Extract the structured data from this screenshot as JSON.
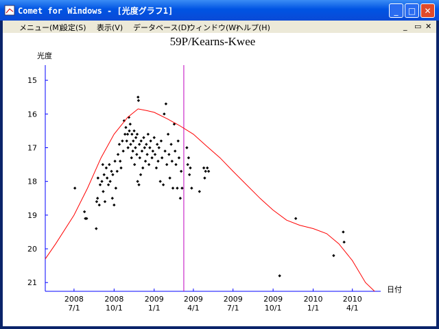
{
  "window": {
    "title": "Comet for Windows - [光度グラフ1]"
  },
  "menu": [
    "メニュー(M)",
    "設定(S)",
    "表示(V)",
    "データベース(D)",
    "ウィンドウ(W)",
    "ヘルプ(H)"
  ],
  "chart_data": {
    "type": "scatter",
    "title": "59P/Kearns-Kwee",
    "y_label": "光度",
    "x_label": "日付",
    "xlim": [
      "2008-04-26",
      "2010-06-05"
    ],
    "xticks": [
      {
        "value": "2008-07-01",
        "label": [
          "2008",
          "7/1"
        ]
      },
      {
        "value": "2008-10-01",
        "label": [
          "2008",
          "10/1"
        ]
      },
      {
        "value": "2009-01-01",
        "label": [
          "2009",
          "1/1"
        ]
      },
      {
        "value": "2009-04-01",
        "label": [
          "2009",
          "4/1"
        ]
      },
      {
        "value": "2009-07-01",
        "label": [
          "2009",
          "7/1"
        ]
      },
      {
        "value": "2009-10-01",
        "label": [
          "2009",
          "10/1"
        ]
      },
      {
        "value": "2010-01-01",
        "label": [
          "2010",
          "1/1"
        ]
      },
      {
        "value": "2010-04-01",
        "label": [
          "2010",
          "4/1"
        ]
      }
    ],
    "ylim": [
      14.55,
      21.26
    ],
    "y_inverted": true,
    "yticks": [
      15,
      16,
      17,
      18,
      19,
      20,
      21
    ],
    "axis_color": "#0000ff",
    "marker_date": "2009-03-10",
    "marker_color": "#c000c0",
    "series": [
      {
        "type": "scatter",
        "color": "#000000",
        "x": [
          "2008-07-03",
          "2008-07-25",
          "2008-07-27",
          "2008-07-30",
          "2008-08-21",
          "2008-08-22",
          "2008-08-24",
          "2008-08-25",
          "2008-08-28",
          "2008-08-30",
          "2008-09-03",
          "2008-09-05",
          "2008-09-06",
          "2008-09-08",
          "2008-09-10",
          "2008-09-13",
          "2008-09-15",
          "2008-09-18",
          "2008-09-20",
          "2008-09-22",
          "2008-09-25",
          "2008-09-27",
          "2008-09-28",
          "2008-10-01",
          "2008-10-03",
          "2008-10-05",
          "2008-10-08",
          "2008-10-10",
          "2008-10-13",
          "2008-10-15",
          "2008-10-17",
          "2008-10-20",
          "2008-10-22",
          "2008-10-24",
          "2008-10-26",
          "2008-10-28",
          "2008-10-30",
          "2008-11-01",
          "2008-11-02",
          "2008-11-04",
          "2008-11-05",
          "2008-11-07",
          "2008-11-08",
          "2008-11-10",
          "2008-11-11",
          "2008-11-13",
          "2008-11-14",
          "2008-11-16",
          "2008-11-17",
          "2008-11-19",
          "2008-11-20",
          "2008-11-22",
          "2008-11-23",
          "2008-11-24",
          "2008-11-25",
          "2008-11-26",
          "2008-11-27",
          "2008-11-28",
          "2008-11-29",
          "2008-12-01",
          "2008-12-02",
          "2008-12-04",
          "2008-12-06",
          "2008-12-08",
          "2008-12-10",
          "2008-12-12",
          "2008-12-14",
          "2008-12-16",
          "2008-12-18",
          "2008-12-20",
          "2008-12-22",
          "2008-12-24",
          "2008-12-27",
          "2008-12-29",
          "2009-01-01",
          "2009-01-03",
          "2009-01-06",
          "2009-01-08",
          "2009-01-10",
          "2009-01-12",
          "2009-01-15",
          "2009-01-17",
          "2009-01-19",
          "2009-01-22",
          "2009-01-24",
          "2009-01-26",
          "2009-01-28",
          "2009-01-30",
          "2009-02-02",
          "2009-02-04",
          "2009-02-06",
          "2009-02-09",
          "2009-02-11",
          "2009-02-13",
          "2009-02-16",
          "2009-02-18",
          "2009-02-20",
          "2009-02-23",
          "2009-02-25",
          "2009-02-27",
          "2009-03-02",
          "2009-03-04",
          "2009-03-06",
          "2009-03-17",
          "2009-03-19",
          "2009-03-21",
          "2009-03-23",
          "2009-03-25",
          "2009-03-28",
          "2009-04-15",
          "2009-04-25",
          "2009-04-27",
          "2009-04-29",
          "2009-05-03",
          "2009-05-06",
          "2009-10-16",
          "2009-11-22",
          "2010-02-17",
          "2010-03-11",
          "2010-03-13"
        ],
        "values": [
          18.2,
          18.9,
          19.1,
          19.1,
          19.4,
          18.6,
          18.5,
          17.9,
          18.7,
          18.1,
          18.0,
          17.5,
          18.3,
          17.8,
          18.6,
          17.6,
          17.9,
          18.1,
          17.5,
          18.0,
          17.7,
          18.5,
          17.8,
          18.7,
          17.4,
          18.2,
          17.7,
          17.2,
          16.9,
          17.4,
          17.6,
          16.8,
          17.1,
          16.2,
          16.6,
          16.4,
          16.8,
          16.6,
          17.0,
          16.1,
          16.5,
          16.3,
          16.9,
          17.3,
          16.6,
          17.1,
          16.8,
          16.5,
          17.5,
          17.0,
          16.7,
          17.2,
          16.6,
          18.0,
          15.5,
          15.6,
          18.1,
          16.9,
          17.3,
          17.8,
          16.8,
          17.1,
          17.6,
          16.7,
          17.0,
          17.4,
          16.9,
          17.2,
          16.6,
          17.5,
          17.0,
          16.8,
          17.3,
          17.1,
          16.7,
          17.2,
          17.6,
          16.9,
          17.4,
          17.0,
          18.0,
          16.8,
          17.3,
          18.1,
          16.0,
          17.1,
          15.7,
          17.5,
          16.6,
          17.2,
          17.9,
          16.9,
          17.4,
          18.2,
          16.3,
          17.1,
          17.5,
          18.2,
          16.8,
          17.3,
          18.5,
          17.7,
          18.2,
          17.0,
          17.5,
          17.3,
          17.8,
          17.6,
          18.2,
          18.3,
          17.6,
          17.9,
          17.7,
          17.6,
          17.7,
          20.8,
          19.1,
          20.2,
          19.5,
          19.8
        ]
      },
      {
        "type": "line",
        "color": "#ff0000",
        "x": [
          "2008-04-26",
          "2008-05-20",
          "2008-07-01",
          "2008-08-01",
          "2008-09-01",
          "2008-10-01",
          "2008-11-01",
          "2008-11-25",
          "2008-12-15",
          "2009-01-01",
          "2009-02-01",
          "2009-03-01",
          "2009-04-01",
          "2009-05-01",
          "2009-06-01",
          "2009-07-01",
          "2009-08-01",
          "2009-09-01",
          "2009-10-01",
          "2009-11-01",
          "2009-12-01",
          "2010-01-01",
          "2010-02-01",
          "2010-03-01",
          "2010-04-01",
          "2010-05-01",
          "2010-05-22"
        ],
        "values": [
          20.3,
          19.85,
          19.0,
          18.2,
          17.3,
          16.6,
          16.1,
          15.85,
          15.9,
          15.95,
          16.15,
          16.35,
          16.6,
          16.95,
          17.3,
          17.7,
          18.1,
          18.5,
          18.85,
          19.15,
          19.3,
          19.4,
          19.55,
          19.85,
          20.35,
          21.0,
          21.26
        ]
      }
    ]
  }
}
